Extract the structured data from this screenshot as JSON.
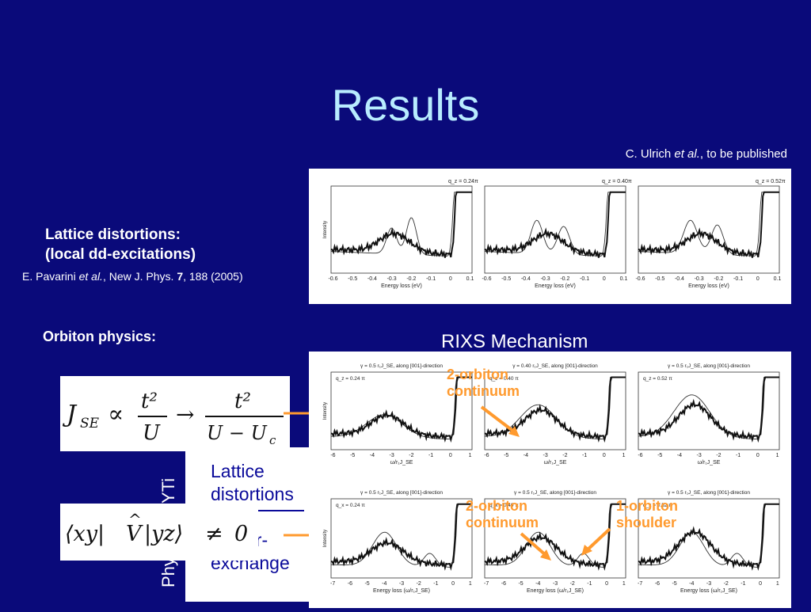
{
  "slide": {
    "title": "Results",
    "credit": {
      "prefix": "C. Ulrich ",
      "etal": "et al.",
      "suffix": ", to be published"
    },
    "lattice_heading_1": "Lattice distortions:",
    "lattice_heading_2": "(local dd-excitations)",
    "pavarini": {
      "prefix": "E. Pavarini ",
      "etal": "et al.",
      "journal": ", New J. Phys. ",
      "vol": "7",
      "suffix": ", 188 (2005)"
    },
    "orbiton_heading": "Orbiton physics:",
    "rixs_title": "RIXS Mechanism",
    "equation1": "J_SE ∝ t²/U → t²/(U − U_c)",
    "equation2": "⟨xy| V̂ |yz⟩ ≠ 0",
    "overlay_lattice": "Lattice",
    "overlay_distortions": "distortions",
    "overlay_super": "er-",
    "overlay_exchange": "exchange",
    "vertical_text": "Physics of YTi",
    "labels": {
      "two_orbiton_top": [
        "2-orbiton",
        "continuum"
      ],
      "two_orbiton_bottom": [
        "2-orbiton",
        "continuum"
      ],
      "one_orbiton": [
        "1-orbiton",
        "shoulder"
      ]
    },
    "colors": {
      "background": "#0a0a7a",
      "title": "#b8ecff",
      "accent": "#ff9a2e"
    }
  },
  "top_panel": {
    "xlabel": "Energy loss (eV)",
    "ylabel": "Intensity",
    "xticks": [
      "-0.6",
      "-0.5",
      "-0.4",
      "-0.3",
      "-0.2",
      "-0.1",
      "0",
      "0.1"
    ],
    "plots": [
      "q_z = 0.24π",
      "q_z = 0.40π",
      "q_z = 0.52π"
    ]
  },
  "bottom_panel": {
    "ylabel": "Intensity",
    "row1": {
      "xlabel": "ω/r₁J_SE",
      "xticks": [
        "-6",
        "-5",
        "-4",
        "-3",
        "-2",
        "-1",
        "0",
        "1"
      ],
      "headers": [
        "γ = 0.5 r₁J_SE, along [001]-direction",
        "γ = 0.40 r₁J_SE, along [001]-direction",
        "γ = 0.5 r₁J_SE, along [001]-direction"
      ],
      "legends": [
        "q_z = 0.24 π",
        "q_z = 0.40 π",
        "q_z = 0.52 π"
      ]
    },
    "row2": {
      "xlabel": "Energy loss (ω/r₁J_SE)",
      "xticks": [
        "-7",
        "-6",
        "-5",
        "-4",
        "-3",
        "-2",
        "-1",
        "0",
        "1"
      ],
      "headers": [
        "γ = 0.5 r₁J_SE, along [001]-direction",
        "γ = 0.5 r₁J_SE, along [001]-direction",
        "γ = 0.5 r₁J_SE, along [001]-direction"
      ],
      "legends": [
        "q_x = 0.24 π",
        "q_x = 0.40 π",
        "q_x = 0.52 π"
      ]
    }
  }
}
